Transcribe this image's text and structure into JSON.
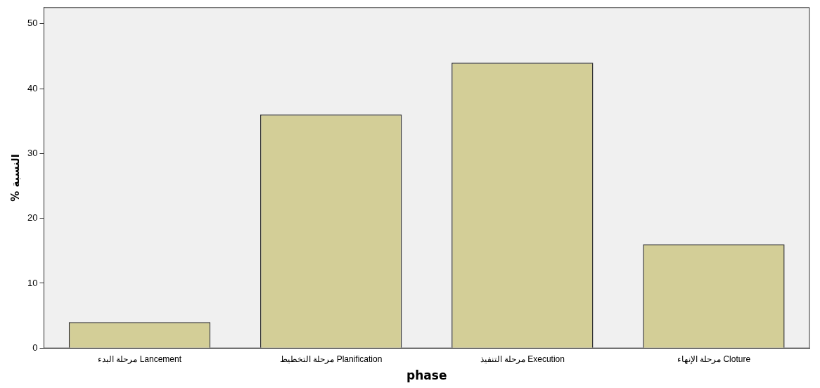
{
  "chart_data": {
    "type": "bar",
    "xlabel": "phase",
    "ylabel": "% النسبة",
    "categories": [
      "مرحلة البدء Lancement",
      "مرحلة التخطيط Planification",
      "مرحلة التنفيذ Execution",
      "مرحلة الإنهاء Cloture"
    ],
    "values": [
      4,
      36,
      44,
      16
    ],
    "color": "#d3ce97",
    "ylim": [
      0,
      52.5
    ],
    "yticks": [
      0,
      10,
      20,
      30,
      40,
      50
    ],
    "grid": false,
    "legend": false
  }
}
